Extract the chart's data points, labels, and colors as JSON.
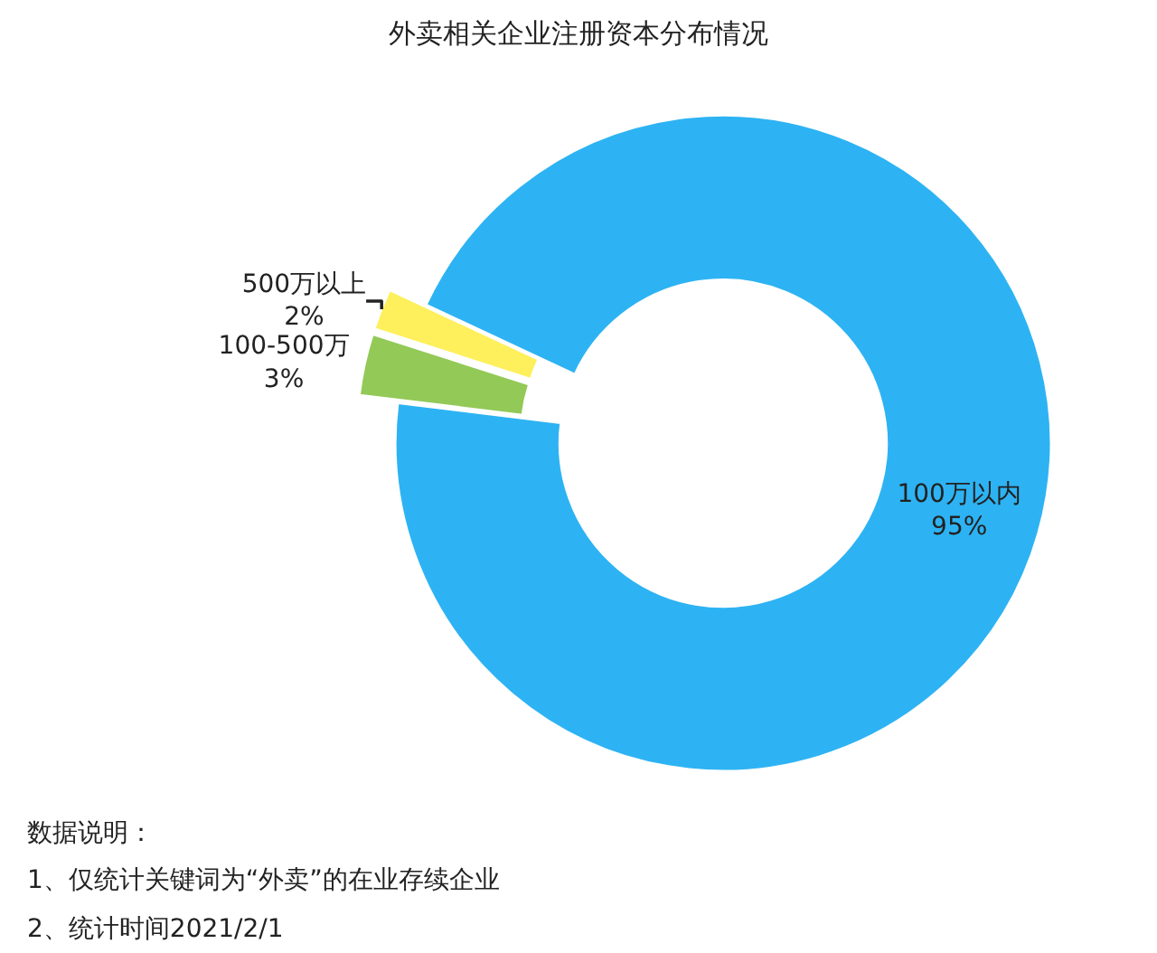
{
  "chart_data": {
    "type": "donut",
    "title": "外卖相关企业注册资本分布情况",
    "categories": [
      "100万以内",
      "100-500万",
      "500万以上"
    ],
    "values": [
      95,
      3,
      2
    ],
    "value_labels": [
      "95%",
      "3%",
      "2%"
    ],
    "colors": [
      "#2db3f3",
      "#93c957",
      "#fdf05c"
    ],
    "legend": false,
    "annotations": [
      "数据说明：",
      "1、仅统计关键词为“外卖”的在业存续企业",
      "2、统计时间2021/2/1"
    ]
  }
}
